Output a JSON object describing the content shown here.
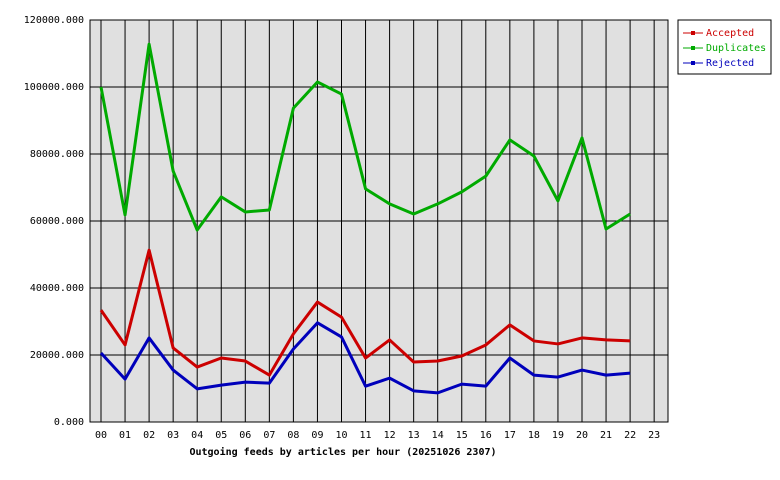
{
  "chart_data": {
    "type": "line",
    "xlabel": "Outgoing feeds by articles per hour (20251026 2307)",
    "categories": [
      "00",
      "01",
      "02",
      "03",
      "04",
      "05",
      "06",
      "07",
      "08",
      "09",
      "10",
      "11",
      "12",
      "13",
      "14",
      "15",
      "16",
      "17",
      "18",
      "19",
      "20",
      "21",
      "22",
      "23"
    ],
    "series": [
      {
        "name": "Accepted",
        "color": "#cc0000",
        "values": [
          33400,
          23000,
          51300,
          22100,
          16400,
          19100,
          18200,
          14000,
          26300,
          35800,
          31300,
          19100,
          24500,
          17900,
          18200,
          19700,
          23000,
          29000,
          24200,
          23300,
          25100,
          24500,
          24200,
          null
        ]
      },
      {
        "name": "Duplicates",
        "color": "#00aa00",
        "values": [
          100000,
          61800,
          112800,
          74900,
          57300,
          67200,
          62700,
          63300,
          93700,
          101500,
          97900,
          69600,
          65100,
          62100,
          65100,
          68700,
          73400,
          84200,
          79400,
          66000,
          84800,
          57600,
          62100,
          null
        ]
      },
      {
        "name": "Rejected",
        "color": "#0000bb",
        "values": [
          20600,
          12800,
          25100,
          15500,
          9900,
          11000,
          11900,
          11600,
          21800,
          29600,
          25400,
          10700,
          13100,
          9300,
          8700,
          11300,
          10700,
          19100,
          14000,
          13400,
          15500,
          14000,
          14600,
          null
        ]
      }
    ],
    "ylim": [
      0,
      120000
    ],
    "yticks": [
      {
        "value": 0,
        "label": "0.000"
      },
      {
        "value": 20000,
        "label": "20000.000"
      },
      {
        "value": 40000,
        "label": "40000.000"
      },
      {
        "value": 60000,
        "label": "60000.000"
      },
      {
        "value": 80000,
        "label": "80000.000"
      },
      {
        "value": 100000,
        "label": "100000.000"
      },
      {
        "value": 120000,
        "label": "120000.000"
      }
    ],
    "grid": true,
    "legend": "upper right"
  }
}
